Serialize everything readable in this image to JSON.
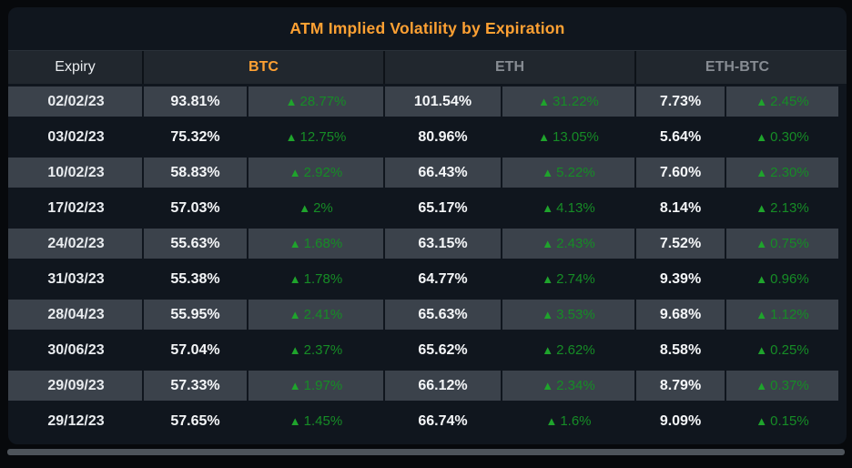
{
  "title": "ATM Implied Volatility by Expiration",
  "colors": {
    "accent_orange": "#ffa133",
    "card_bg": "#10161e",
    "header_bg": "#21272e",
    "row_light_bg": "#3b424b",
    "border_dark": "#0d1218",
    "muted_header": "#878c93",
    "green_triangle": "#1fa42c",
    "green_text": "#168c26",
    "scrollbar": "#4e545b"
  },
  "icons": {
    "up_triangle": "▲"
  },
  "table": {
    "expiry_header": "Expiry",
    "groups": [
      {
        "label": "BTC"
      },
      {
        "label": "ETH"
      },
      {
        "label": "ETH-BTC"
      }
    ],
    "rows": [
      {
        "expiry": "02/02/23",
        "btc": "93.81%",
        "btc_change": "28.77%",
        "eth": "101.54%",
        "eth_change": "31.22%",
        "ethbtc": "7.73%",
        "ethbtc_change": "2.45%"
      },
      {
        "expiry": "03/02/23",
        "btc": "75.32%",
        "btc_change": "12.75%",
        "eth": "80.96%",
        "eth_change": "13.05%",
        "ethbtc": "5.64%",
        "ethbtc_change": "0.30%"
      },
      {
        "expiry": "10/02/23",
        "btc": "58.83%",
        "btc_change": "2.92%",
        "eth": "66.43%",
        "eth_change": "5.22%",
        "ethbtc": "7.60%",
        "ethbtc_change": "2.30%"
      },
      {
        "expiry": "17/02/23",
        "btc": "57.03%",
        "btc_change": "2%",
        "eth": "65.17%",
        "eth_change": "4.13%",
        "ethbtc": "8.14%",
        "ethbtc_change": "2.13%"
      },
      {
        "expiry": "24/02/23",
        "btc": "55.63%",
        "btc_change": "1.68%",
        "eth": "63.15%",
        "eth_change": "2.43%",
        "ethbtc": "7.52%",
        "ethbtc_change": "0.75%"
      },
      {
        "expiry": "31/03/23",
        "btc": "55.38%",
        "btc_change": "1.78%",
        "eth": "64.77%",
        "eth_change": "2.74%",
        "ethbtc": "9.39%",
        "ethbtc_change": "0.96%"
      },
      {
        "expiry": "28/04/23",
        "btc": "55.95%",
        "btc_change": "2.41%",
        "eth": "65.63%",
        "eth_change": "3.53%",
        "ethbtc": "9.68%",
        "ethbtc_change": "1.12%"
      },
      {
        "expiry": "30/06/23",
        "btc": "57.04%",
        "btc_change": "2.37%",
        "eth": "65.62%",
        "eth_change": "2.62%",
        "ethbtc": "8.58%",
        "ethbtc_change": "0.25%"
      },
      {
        "expiry": "29/09/23",
        "btc": "57.33%",
        "btc_change": "1.97%",
        "eth": "66.12%",
        "eth_change": "2.34%",
        "ethbtc": "8.79%",
        "ethbtc_change": "0.37%"
      },
      {
        "expiry": "29/12/23",
        "btc": "57.65%",
        "btc_change": "1.45%",
        "eth": "66.74%",
        "eth_change": "1.6%",
        "ethbtc": "9.09%",
        "ethbtc_change": "0.15%"
      }
    ]
  }
}
